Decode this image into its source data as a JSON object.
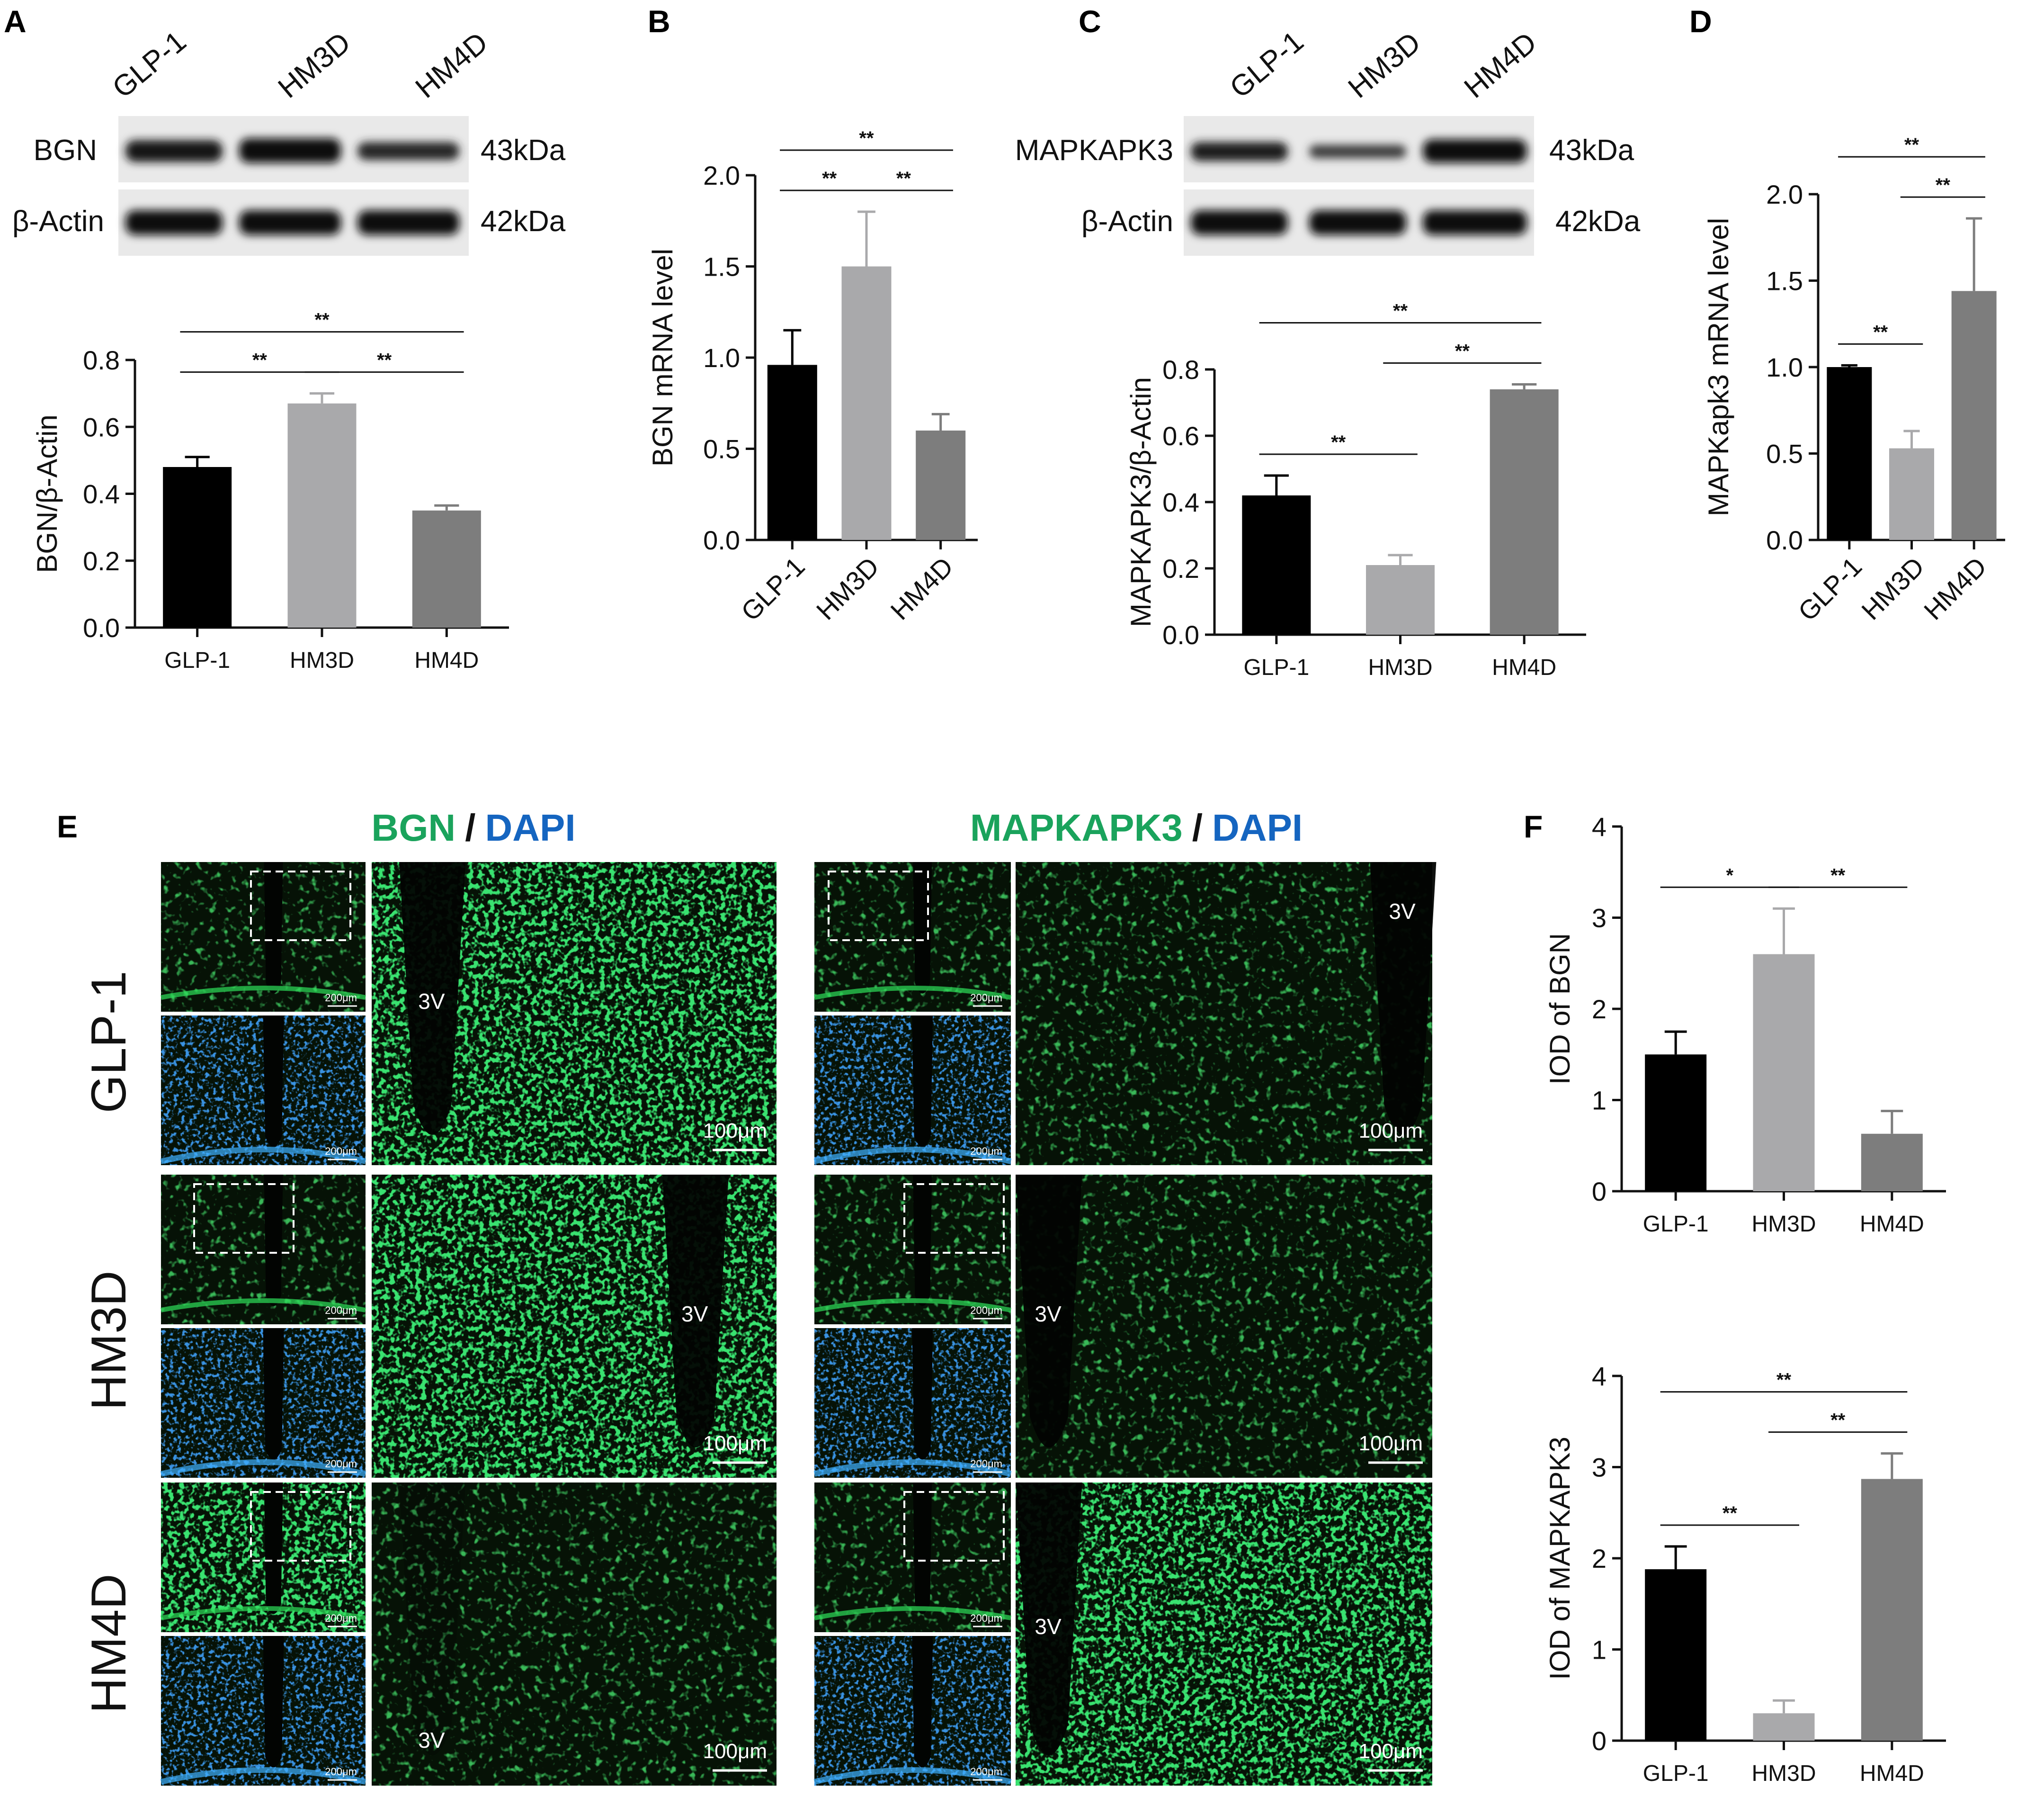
{
  "panel_labels": {
    "A": "A",
    "B": "B",
    "C": "C",
    "D": "D",
    "E": "E",
    "F": "F"
  },
  "blot_A": {
    "lanes": [
      "GLP-1",
      "HM3D",
      "HM4D"
    ],
    "rows": [
      {
        "label": "BGN",
        "size": "43kDa"
      },
      {
        "label": "β-Actin",
        "size": "42kDa"
      }
    ]
  },
  "blot_C": {
    "lanes": [
      "GLP-1",
      "HM3D",
      "HM4D"
    ],
    "rows": [
      {
        "label": "MAPKAPK3",
        "size": "43kDa"
      },
      {
        "label": "β-Actin",
        "size": "42kDa"
      }
    ]
  },
  "colors": {
    "GLP-1": "#000000",
    "HM3D": "#a9a9ab",
    "HM4D": "#7d7d7d",
    "green_label": "#1aa35c",
    "blue_label": "#1565c0"
  },
  "chart_data": [
    {
      "id": "A",
      "type": "bar",
      "categories": [
        "GLP-1",
        "HM3D",
        "HM4D"
      ],
      "values": [
        0.48,
        0.67,
        0.35
      ],
      "errors": [
        0.03,
        0.03,
        0.015
      ],
      "ylabel": "BGN/β-Actin",
      "ylim": [
        0,
        0.8
      ],
      "yticks": [
        "0.0",
        "0.2",
        "0.4",
        "0.6",
        "0.8"
      ],
      "significance": [
        {
          "pair": [
            0,
            1
          ],
          "label": "**"
        },
        {
          "pair": [
            1,
            2
          ],
          "label": "**"
        },
        {
          "pair": [
            0,
            2
          ],
          "label": "**"
        }
      ]
    },
    {
      "id": "B",
      "type": "bar",
      "categories": [
        "GLP-1",
        "HM3D",
        "HM4D"
      ],
      "values": [
        0.96,
        1.5,
        0.6
      ],
      "errors": [
        0.19,
        0.3,
        0.09
      ],
      "ylabel": "BGN mRNA level",
      "ylim": [
        0,
        2.0
      ],
      "yticks": [
        "0.0",
        "0.5",
        "1.0",
        "1.5",
        "2.0"
      ],
      "significance": [
        {
          "pair": [
            0,
            1
          ],
          "label": "**"
        },
        {
          "pair": [
            1,
            2
          ],
          "label": "**"
        },
        {
          "pair": [
            0,
            2
          ],
          "label": "**"
        }
      ]
    },
    {
      "id": "C",
      "type": "bar",
      "categories": [
        "GLP-1",
        "HM3D",
        "HM4D"
      ],
      "values": [
        0.42,
        0.21,
        0.74
      ],
      "errors": [
        0.06,
        0.03,
        0.015
      ],
      "ylabel": "MAPKAPK3/β-Actin",
      "ylim": [
        0,
        0.8
      ],
      "yticks": [
        "0.0",
        "0.2",
        "0.4",
        "0.6",
        "0.8"
      ],
      "significance": [
        {
          "pair": [
            0,
            1
          ],
          "label": "**"
        },
        {
          "pair": [
            1,
            2
          ],
          "label": "**"
        },
        {
          "pair": [
            0,
            2
          ],
          "label": "**"
        }
      ]
    },
    {
      "id": "D",
      "type": "bar",
      "categories": [
        "GLP-1",
        "HM3D",
        "HM4D"
      ],
      "values": [
        1.0,
        0.53,
        1.44
      ],
      "errors": [
        0.01,
        0.1,
        0.42
      ],
      "ylabel": "MAPKapk3 mRNA level",
      "ylim": [
        0,
        2.0
      ],
      "yticks": [
        "0.0",
        "0.5",
        "1.0",
        "1.5",
        "2.0"
      ],
      "significance": [
        {
          "pair": [
            0,
            1
          ],
          "label": "**"
        },
        {
          "pair": [
            1,
            2
          ],
          "label": "**"
        },
        {
          "pair": [
            0,
            2
          ],
          "label": "**"
        }
      ]
    },
    {
      "id": "F1",
      "type": "bar",
      "categories": [
        "GLP-1",
        "HM3D",
        "HM4D"
      ],
      "values": [
        1.5,
        2.6,
        0.63
      ],
      "errors": [
        0.25,
        0.5,
        0.25
      ],
      "ylabel": "IOD of BGN",
      "ylim": [
        0,
        4
      ],
      "yticks": [
        "0",
        "1",
        "2",
        "3",
        "4"
      ],
      "significance": [
        {
          "pair": [
            0,
            1
          ],
          "label": "*"
        },
        {
          "pair": [
            1,
            2
          ],
          "label": "**"
        }
      ]
    },
    {
      "id": "F2",
      "type": "bar",
      "categories": [
        "GLP-1",
        "HM3D",
        "HM4D"
      ],
      "values": [
        1.88,
        0.3,
        2.87
      ],
      "errors": [
        0.25,
        0.14,
        0.28
      ],
      "ylabel": "IOD of MAPKAPK3",
      "ylim": [
        0,
        4
      ],
      "yticks": [
        "0",
        "1",
        "2",
        "3",
        "4"
      ],
      "significance": [
        {
          "pair": [
            0,
            1
          ],
          "label": "**"
        },
        {
          "pair": [
            1,
            2
          ],
          "label": "**"
        },
        {
          "pair": [
            0,
            2
          ],
          "label": "**"
        }
      ]
    }
  ],
  "panel_E": {
    "title_left": {
      "green": "BGN",
      "sep": "/",
      "blue": "DAPI"
    },
    "title_right": {
      "green": "MAPKAPK3",
      "sep": "/",
      "blue": "DAPI"
    },
    "rows": [
      "GLP-1",
      "HM3D",
      "HM4D"
    ],
    "scale_small": "200μm",
    "scale_large": "100μm",
    "ventricle": "3V"
  }
}
